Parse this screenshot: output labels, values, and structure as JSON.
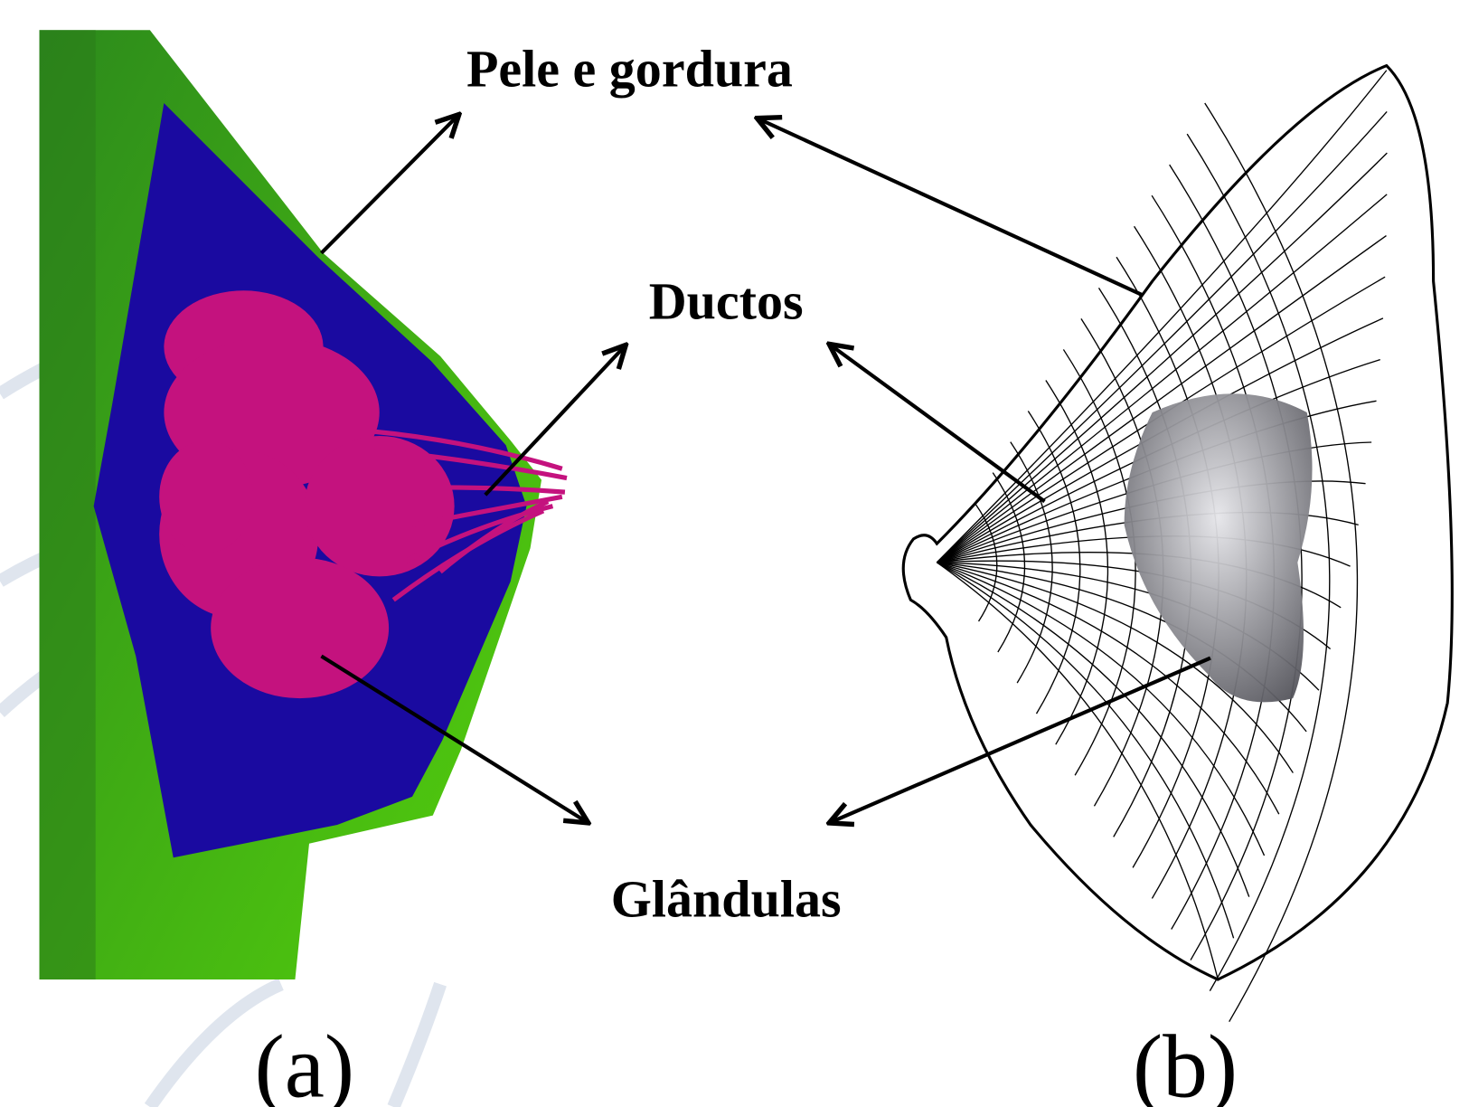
{
  "labels": {
    "skin_fat": "Pele e gordura",
    "ducts": "Ductos",
    "glands": "Glândulas"
  },
  "panels": {
    "a": "(a)",
    "b": "(b)"
  }
}
